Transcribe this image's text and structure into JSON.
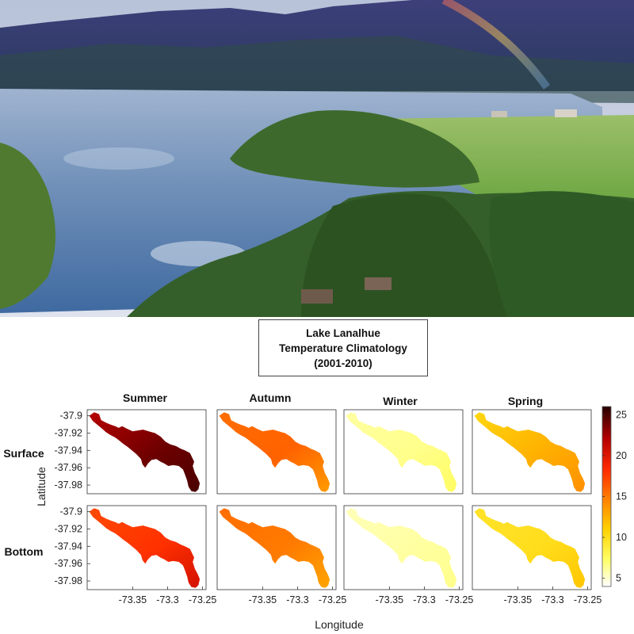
{
  "chart_data": {
    "type": "heatmap",
    "title_lines": [
      "Lake Lanalhue",
      "Temperature Climatology",
      "(2001-2010)"
    ],
    "xlabel": "Longitude",
    "ylabel": "Latitude",
    "columns": [
      "Summer",
      "Autumn",
      "Winter",
      "Spring"
    ],
    "rows": [
      "Surface",
      "Bottom"
    ],
    "xlim": [
      -73.415,
      -73.245
    ],
    "ylim": [
      -37.99,
      -37.893
    ],
    "x_ticks": [
      "-73.35",
      "-73.3",
      "-73.25"
    ],
    "x_tick_values": [
      -73.35,
      -73.3,
      -73.25
    ],
    "y_ticks": [
      "-37.9",
      "-37.92",
      "-37.94",
      "-37.96",
      "-37.98"
    ],
    "y_tick_values": [
      -37.9,
      -37.92,
      -37.94,
      -37.96,
      -37.98
    ],
    "colorbar": {
      "range": [
        4,
        26
      ],
      "ticks": [
        "25",
        "20",
        "15",
        "10",
        "5"
      ],
      "tick_values": [
        25,
        20,
        15,
        10,
        5
      ],
      "colormap": "hot (reversed)"
    },
    "lake_outline": [
      [
        -73.412,
        -37.9
      ],
      [
        -73.405,
        -37.896
      ],
      [
        -73.398,
        -37.898
      ],
      [
        -73.395,
        -37.905
      ],
      [
        -73.388,
        -37.908
      ],
      [
        -73.382,
        -37.91
      ],
      [
        -73.375,
        -37.912
      ],
      [
        -73.37,
        -37.914
      ],
      [
        -73.365,
        -37.912
      ],
      [
        -73.358,
        -37.915
      ],
      [
        -73.35,
        -37.918
      ],
      [
        -73.343,
        -37.917
      ],
      [
        -73.335,
        -37.916
      ],
      [
        -73.327,
        -37.918
      ],
      [
        -73.318,
        -37.92
      ],
      [
        -73.31,
        -37.924
      ],
      [
        -73.303,
        -37.93
      ],
      [
        -73.296,
        -37.933
      ],
      [
        -73.288,
        -37.935
      ],
      [
        -73.281,
        -37.938
      ],
      [
        -73.275,
        -37.94
      ],
      [
        -73.268,
        -37.943
      ],
      [
        -73.265,
        -37.948
      ],
      [
        -73.262,
        -37.953
      ],
      [
        -73.264,
        -37.958
      ],
      [
        -73.261,
        -37.966
      ],
      [
        -73.257,
        -37.972
      ],
      [
        -73.254,
        -37.978
      ],
      [
        -73.256,
        -37.985
      ],
      [
        -73.26,
        -37.988
      ],
      [
        -73.266,
        -37.987
      ],
      [
        -73.27,
        -37.982
      ],
      [
        -73.272,
        -37.975
      ],
      [
        -73.275,
        -37.968
      ],
      [
        -73.278,
        -37.962
      ],
      [
        -73.284,
        -37.958
      ],
      [
        -73.292,
        -37.957
      ],
      [
        -73.299,
        -37.958
      ],
      [
        -73.305,
        -37.955
      ],
      [
        -73.31,
        -37.953
      ],
      [
        -73.316,
        -37.95
      ],
      [
        -73.323,
        -37.951
      ],
      [
        -73.328,
        -37.955
      ],
      [
        -73.332,
        -37.96
      ],
      [
        -73.336,
        -37.956
      ],
      [
        -73.338,
        -37.95
      ],
      [
        -73.345,
        -37.944
      ],
      [
        -73.351,
        -37.94
      ],
      [
        -73.357,
        -37.936
      ],
      [
        -73.364,
        -37.932
      ],
      [
        -73.37,
        -37.928
      ],
      [
        -73.375,
        -37.925
      ],
      [
        -73.382,
        -37.922
      ],
      [
        -73.388,
        -37.919
      ],
      [
        -73.395,
        -37.914
      ],
      [
        -73.401,
        -37.91
      ],
      [
        -73.407,
        -37.906
      ]
    ],
    "series": [
      {
        "name": "Surface Summer",
        "mean": 23.5,
        "west": 22.0,
        "center": 24.0,
        "south": 25.0
      },
      {
        "name": "Surface Autumn",
        "mean": 16.0,
        "west": 15.5,
        "center": 16.0,
        "south": 13.5
      },
      {
        "name": "Surface Winter",
        "mean": 6.5,
        "west": 6.0,
        "center": 6.5,
        "south": 7.5
      },
      {
        "name": "Surface Spring",
        "mean": 12.5,
        "west": 10.5,
        "center": 12.5,
        "south": 14.0
      },
      {
        "name": "Bottom Summer",
        "mean": 17.5,
        "west": 17.0,
        "center": 18.0,
        "south": 20.5
      },
      {
        "name": "Bottom Autumn",
        "mean": 15.0,
        "west": 15.5,
        "center": 15.0,
        "south": 13.0
      },
      {
        "name": "Bottom Winter",
        "mean": 6.0,
        "west": 5.5,
        "center": 6.0,
        "south": 6.5
      },
      {
        "name": "Bottom Spring",
        "mean": 10.0,
        "west": 9.5,
        "center": 10.0,
        "south": 11.5
      }
    ]
  }
}
